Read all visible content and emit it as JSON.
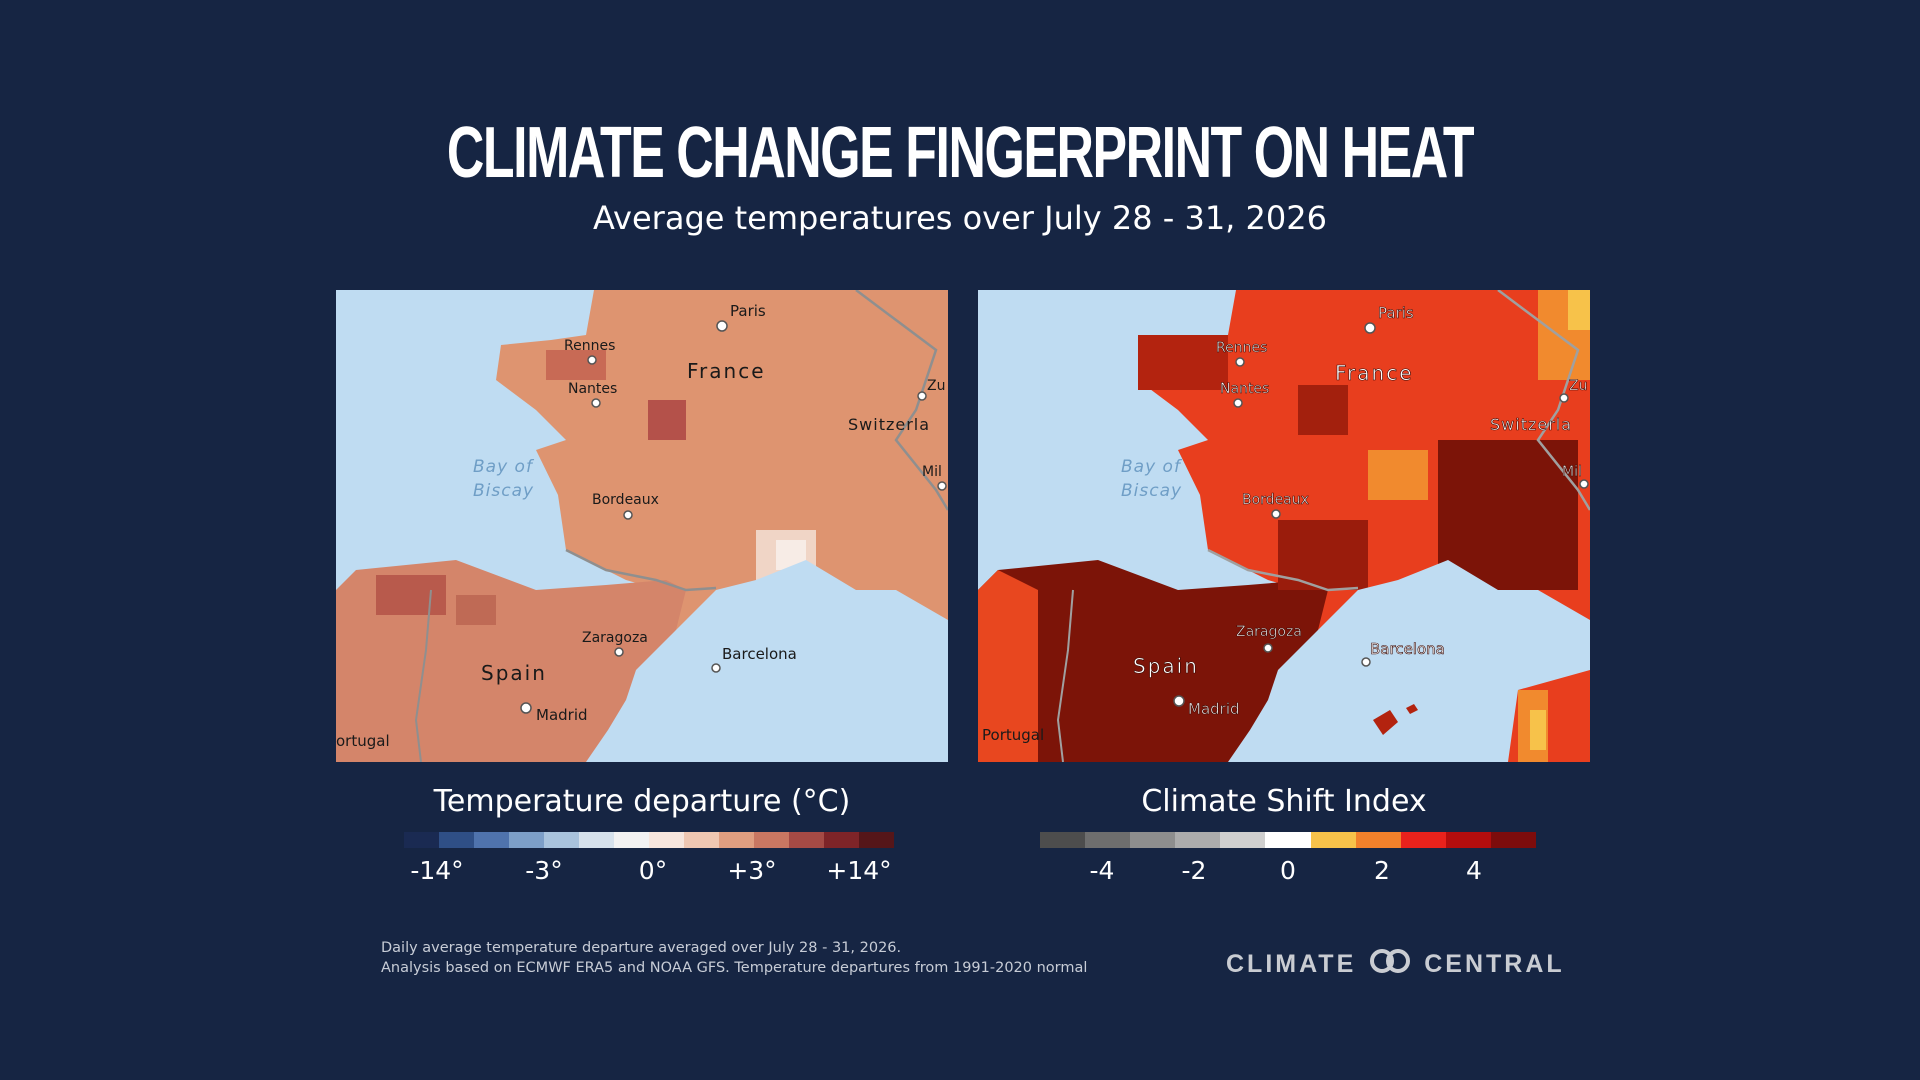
{
  "title": "CLIMATE CHANGE FINGERPRINT ON HEAT",
  "subtitle": "Average temperatures over July 28 - 31, 2026",
  "map_labels": {
    "paris": "Paris",
    "rennes": "Rennes",
    "france": "France",
    "nantes": "Nantes",
    "switzerland_left": "Switzerla",
    "switzerland_right": "Switzerla",
    "zu": "Zu",
    "mil": "Mil",
    "bay_of": "Bay of",
    "biscay": "Biscay",
    "bordeaux": "Bordeaux",
    "zaragoza": "Zaragoza",
    "barcelona": "Barcelona",
    "spain": "Spain",
    "madrid": "Madrid",
    "portugal_left": "ortugal",
    "portugal_right": "Portugal"
  },
  "legend_temperature": {
    "title": "Temperature departure (°C)",
    "colors": [
      "#1a2a52",
      "#2f4f86",
      "#4f73ad",
      "#7d9fc8",
      "#a9c3dd",
      "#d6e1ec",
      "#f2f2f2",
      "#f7e6dd",
      "#efc7b2",
      "#e09e80",
      "#c97762",
      "#a54a45",
      "#7e2428",
      "#551619"
    ],
    "ticks": [
      "-14°",
      "-3°",
      "0°",
      "+3°",
      "+14°"
    ]
  },
  "legend_csi": {
    "title": "Climate Shift Index",
    "colors": [
      "#4d4d4d",
      "#6e6e6e",
      "#8e8e8e",
      "#acacac",
      "#cfcfcf",
      "#ffffff",
      "#f7c24a",
      "#f2812b",
      "#e8221c",
      "#b30d0d",
      "#7d0c0c"
    ],
    "ticks": [
      "-4",
      "-2",
      "0",
      "2",
      "4"
    ]
  },
  "footnote": {
    "line1": "Daily average temperature departure averaged over July 28 - 31, 2026.",
    "line2": "Analysis based on ECMWF ERA5 and NOAA GFS. Temperature departures from 1991-2020 normal"
  },
  "logo": {
    "left": "CLIMATE",
    "right": "CENTRAL"
  }
}
